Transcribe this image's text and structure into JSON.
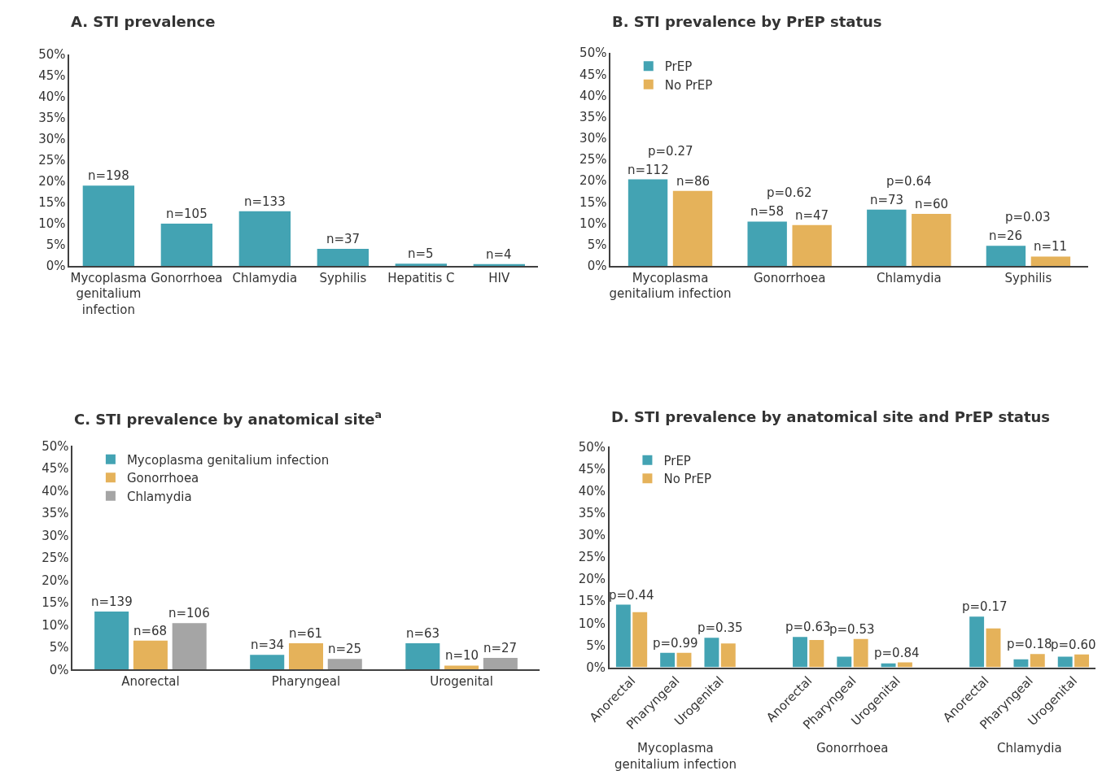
{
  "chart_data": [
    {
      "type": "bar",
      "title": "A. STI prevalence",
      "categories": [
        "Mycoplasma genitalium infection",
        "Gonorrhoea",
        "Chlamydia",
        "Syphilis",
        "Hepatitis C",
        "HIV"
      ],
      "values": [
        19.0,
        10.0,
        12.9,
        4.0,
        0.5,
        0.4
      ],
      "color": "#43a3b3",
      "annotations": [
        {
          "text": "n=198",
          "x": "Mycoplasma genitalium infection",
          "y": 19.0
        },
        {
          "text": "n=105",
          "x": "Gonorrhoea",
          "y": 10.0
        },
        {
          "text": "n=133",
          "x": "Chlamydia",
          "y": 12.9
        },
        {
          "text": "n=37",
          "x": "Syphilis",
          "y": 4.0
        },
        {
          "text": "n=5",
          "x": "Hepatitis C",
          "y": 0.5
        },
        {
          "text": "n=4",
          "x": "HIV",
          "y": 0.4
        }
      ],
      "ylim": [
        0,
        50
      ],
      "yticks": [
        {
          "value": 0,
          "label": "0%"
        },
        {
          "value": 5,
          "label": "5%"
        },
        {
          "value": 10,
          "label": "10%"
        },
        {
          "value": 15,
          "label": "15%"
        },
        {
          "value": 20,
          "label": "20%"
        },
        {
          "value": 25,
          "label": "25%"
        },
        {
          "value": 30,
          "label": "30%"
        },
        {
          "value": 35,
          "label": "35%"
        },
        {
          "value": 40,
          "label": "40%"
        },
        {
          "value": 45,
          "label": "45%"
        },
        {
          "value": 50,
          "label": "50%"
        }
      ]
    },
    {
      "type": "bar",
      "title": "B. STI prevalence by PrEP status",
      "categories": [
        "Mycoplasma genitalium infection",
        "Gonorrhoea",
        "Chlamydia",
        "Syphilis"
      ],
      "series": [
        {
          "name": "PrEP",
          "color": "#43a3b3",
          "values": [
            20.3,
            10.4,
            13.2,
            4.7
          ]
        },
        {
          "name": "No PrEP",
          "color": "#e5b25a",
          "values": [
            17.6,
            9.6,
            12.2,
            2.2
          ]
        }
      ],
      "annotations": [
        "p=0.27",
        "p=0.62",
        "p=0.64",
        "p=0.03",
        {
          "text": "n=112",
          "x": "Mycoplasma genitalium infection",
          "y": 20.3
        },
        {
          "text": "n=58",
          "x": "Gonorrhoea",
          "y": 10.4
        },
        {
          "text": "n=73",
          "x": "Chlamydia",
          "y": 13.2
        },
        {
          "text": "n=26",
          "x": "Syphilis",
          "y": 4.7
        },
        {
          "text": "n=86",
          "x": "Mycoplasma genitalium infection",
          "y": 17.6
        },
        {
          "text": "n=47",
          "x": "Gonorrhoea",
          "y": 9.6
        },
        {
          "text": "n=60",
          "x": "Chlamydia",
          "y": 12.2
        },
        {
          "text": "n=11",
          "x": "Syphilis",
          "y": 2.2
        }
      ],
      "legend": "top left",
      "ylim": [
        0,
        50
      ],
      "yticks": [
        {
          "value": 0,
          "label": "0%"
        },
        {
          "value": 5,
          "label": "5%"
        },
        {
          "value": 10,
          "label": "10%"
        },
        {
          "value": 15,
          "label": "15%"
        },
        {
          "value": 20,
          "label": "20%"
        },
        {
          "value": 25,
          "label": "25%"
        },
        {
          "value": 30,
          "label": "30%"
        },
        {
          "value": 35,
          "label": "35%"
        },
        {
          "value": 40,
          "label": "40%"
        },
        {
          "value": 45,
          "label": "45%"
        },
        {
          "value": 50,
          "label": "50%"
        }
      ]
    },
    {
      "type": "bar",
      "title": "C. STI prevalence by anatomical site$^{a}$",
      "categories": [
        "Anorectal",
        "Pharyngeal",
        "Urogenital"
      ],
      "series": [
        {
          "name": "Mycoplasma genitalium infection",
          "color": "#43a3b3",
          "values": [
            13.0,
            3.3,
            5.9
          ]
        },
        {
          "name": "Gonorrhoea",
          "color": "#e5b25a",
          "values": [
            6.5,
            5.9,
            0.9
          ]
        },
        {
          "name": "Chlamydia",
          "color": "#a5a5a5",
          "values": [
            10.4,
            2.4,
            2.6
          ]
        }
      ],
      "annotations": [
        "n=139",
        "n=34",
        "n=63",
        "n=68",
        "n=61",
        "n=10",
        "n=106",
        "n=25",
        "n=27"
      ],
      "legend": "top left",
      "ylim": [
        0,
        50
      ],
      "yticks": [
        {
          "value": 0,
          "label": "0%"
        },
        {
          "value": 5,
          "label": "5%"
        },
        {
          "value": 10,
          "label": "10%"
        },
        {
          "value": 15,
          "label": "15%"
        },
        {
          "value": 20,
          "label": "20%"
        },
        {
          "value": 25,
          "label": "25%"
        },
        {
          "value": 30,
          "label": "30%"
        },
        {
          "value": 35,
          "label": "35%"
        },
        {
          "value": 40,
          "label": "40%"
        },
        {
          "value": 45,
          "label": "45%"
        },
        {
          "value": 50,
          "label": "50%"
        }
      ]
    },
    {
      "type": "bar",
      "title": "D. STI prevalence by anatomical site and PrEP status",
      "categories": [
        "Anorectal",
        "Pharyngeal",
        "Urogenital",
        null,
        "Anorectal",
        "Pharyngeal",
        "Urogenital",
        null,
        "Anorectal",
        "Pharyngeal",
        "Urogenital"
      ],
      "series": [
        {
          "name": "PrEP",
          "color": "#43a3b3",
          "values": [
            14.2,
            3.3,
            6.7,
            null,
            6.9,
            2.4,
            0.9,
            null,
            11.5,
            1.8,
            2.4
          ]
        },
        {
          "name": "No PrEP",
          "color": "#e5b25a",
          "values": [
            12.5,
            3.3,
            5.4,
            null,
            6.2,
            6.4,
            1.1,
            null,
            8.8,
            3.0,
            2.9
          ]
        }
      ],
      "annotations": [
        "p=0.44",
        "p=0.99",
        "p=0.35",
        "p=0.63",
        "p=0.53",
        "p=0.84",
        "p=0.17",
        "p=0.18",
        "p=0.60",
        "Mycoplasma genitalium infection",
        "Gonorrhoea",
        "Chlamydia"
      ],
      "legend": "top left",
      "ylim": [
        0,
        50
      ],
      "yticks": [
        {
          "value": 0,
          "label": "0%"
        },
        {
          "value": 5,
          "label": "5%"
        },
        {
          "value": 10,
          "label": "10%"
        },
        {
          "value": 15,
          "label": "15%"
        },
        {
          "value": 20,
          "label": "20%"
        },
        {
          "value": 25,
          "label": "25%"
        },
        {
          "value": 30,
          "label": "30%"
        },
        {
          "value": 35,
          "label": "35%"
        },
        {
          "value": 40,
          "label": "40%"
        },
        {
          "value": 45,
          "label": "45%"
        },
        {
          "value": 50,
          "label": "50%"
        }
      ]
    }
  ]
}
